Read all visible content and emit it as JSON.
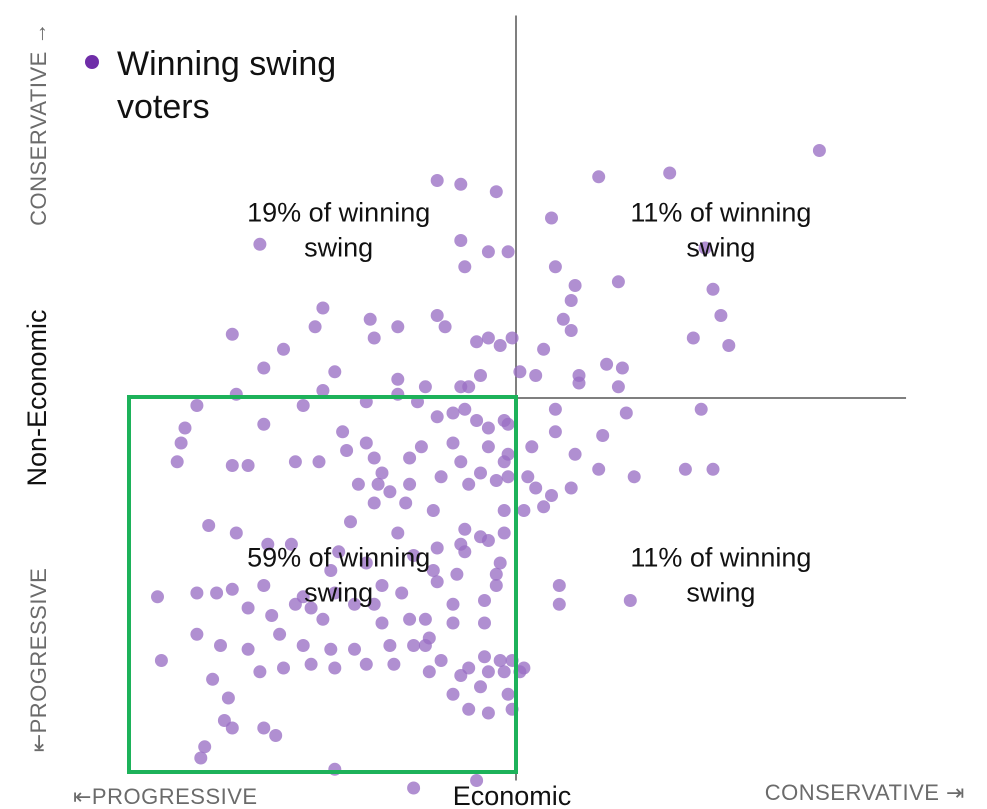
{
  "legend": {
    "label": "Winning swing voters",
    "line1": "Winning swing",
    "line2": "voters",
    "marker_color": "#6f2da8"
  },
  "colors": {
    "point": "#9a6fc4",
    "axis": "#555555",
    "highlight_box": "#1db25a",
    "caption": "#6b6b6b"
  },
  "axes": {
    "x_title": "Economic",
    "y_title": "Non-Economic",
    "x_left_caption": "⇤PROGRESSIVE",
    "x_right_caption": "CONSERVATIVE ⇥",
    "y_bottom_caption": "⇤PROGRESSIVE",
    "y_top_caption": "CONSERVATIVE →"
  },
  "chart_data": {
    "type": "scatter",
    "title": "",
    "xlabel": "Economic",
    "ylabel": "Non-Economic",
    "xlim": [
      -1,
      1
    ],
    "ylim": [
      -1,
      1
    ],
    "grid": false,
    "legend": {
      "position": "top-left",
      "entries": [
        "Winning swing voters"
      ]
    },
    "annotations": [
      {
        "line1": "19% of winning",
        "line2": "swing",
        "quadrant": "top-left",
        "x": -0.45,
        "y": 0.45
      },
      {
        "line1": "11% of winning",
        "line2": "swing",
        "quadrant": "top-right",
        "x": 0.52,
        "y": 0.45
      },
      {
        "line1": "59% of winning",
        "line2": "swing",
        "quadrant": "bottom-left",
        "x": -0.45,
        "y": -0.47
      },
      {
        "line1": "11% of winning",
        "line2": "swing",
        "quadrant": "bottom-right",
        "x": 0.52,
        "y": -0.47
      }
    ],
    "highlight_region": {
      "x": [
        -1,
        0
      ],
      "y": [
        -1,
        0
      ]
    },
    "series": [
      {
        "name": "Winning swing voters",
        "points": [
          [
            0.77,
            0.66
          ],
          [
            0.39,
            0.6
          ],
          [
            0.21,
            0.59
          ],
          [
            -0.14,
            0.57
          ],
          [
            -0.2,
            0.58
          ],
          [
            -0.05,
            0.55
          ],
          [
            0.09,
            0.48
          ],
          [
            -0.14,
            0.42
          ],
          [
            -0.02,
            0.39
          ],
          [
            -0.07,
            0.39
          ],
          [
            -0.65,
            0.41
          ],
          [
            -0.13,
            0.35
          ],
          [
            0.1,
            0.35
          ],
          [
            0.26,
            0.31
          ],
          [
            0.5,
            0.29
          ],
          [
            0.48,
            0.4
          ],
          [
            0.15,
            0.3
          ],
          [
            0.14,
            0.26
          ],
          [
            -0.49,
            0.24
          ],
          [
            -0.51,
            0.19
          ],
          [
            -0.2,
            0.22
          ],
          [
            -0.37,
            0.21
          ],
          [
            -0.72,
            0.17
          ],
          [
            -0.3,
            0.19
          ],
          [
            -0.18,
            0.19
          ],
          [
            -0.36,
            0.16
          ],
          [
            0.12,
            0.21
          ],
          [
            0.14,
            0.18
          ],
          [
            0.52,
            0.22
          ],
          [
            0.45,
            0.16
          ],
          [
            0.54,
            0.14
          ],
          [
            -0.07,
            0.16
          ],
          [
            -0.1,
            0.15
          ],
          [
            -0.04,
            0.14
          ],
          [
            -0.01,
            0.16
          ],
          [
            -0.59,
            0.13
          ],
          [
            -0.64,
            0.08
          ],
          [
            -0.46,
            0.07
          ],
          [
            -0.3,
            0.05
          ],
          [
            0.07,
            0.13
          ],
          [
            0.23,
            0.09
          ],
          [
            0.16,
            0.06
          ],
          [
            0.27,
            0.08
          ],
          [
            0.01,
            0.07
          ],
          [
            -0.71,
            0.01
          ],
          [
            -0.49,
            0.02
          ],
          [
            -0.38,
            -0.01
          ],
          [
            -0.3,
            0.01
          ],
          [
            -0.25,
            -0.01
          ],
          [
            -0.23,
            0.03
          ],
          [
            -0.14,
            0.03
          ],
          [
            -0.12,
            0.03
          ],
          [
            0.05,
            0.06
          ],
          [
            0.16,
            0.04
          ],
          [
            0.26,
            0.03
          ],
          [
            -0.09,
            0.06
          ],
          [
            -0.81,
            -0.02
          ],
          [
            -0.84,
            -0.08
          ],
          [
            -0.85,
            -0.12
          ],
          [
            -0.54,
            -0.02
          ],
          [
            -0.64,
            -0.07
          ],
          [
            -0.44,
            -0.09
          ],
          [
            -0.43,
            -0.14
          ],
          [
            -0.38,
            -0.12
          ],
          [
            -0.36,
            -0.16
          ],
          [
            -0.2,
            -0.05
          ],
          [
            -0.16,
            -0.04
          ],
          [
            -0.13,
            -0.03
          ],
          [
            -0.1,
            -0.06
          ],
          [
            -0.07,
            -0.08
          ],
          [
            -0.03,
            -0.06
          ],
          [
            -0.02,
            -0.07
          ],
          [
            0.1,
            -0.03
          ],
          [
            0.28,
            -0.04
          ],
          [
            0.47,
            -0.03
          ],
          [
            0.1,
            -0.09
          ],
          [
            0.22,
            -0.1
          ],
          [
            -0.86,
            -0.17
          ],
          [
            -0.72,
            -0.18
          ],
          [
            -0.68,
            -0.18
          ],
          [
            -0.56,
            -0.17
          ],
          [
            -0.5,
            -0.17
          ],
          [
            -0.34,
            -0.2
          ],
          [
            -0.27,
            -0.16
          ],
          [
            -0.14,
            -0.17
          ],
          [
            -0.03,
            -0.17
          ],
          [
            -0.07,
            -0.13
          ],
          [
            -0.02,
            -0.15
          ],
          [
            -0.16,
            -0.12
          ],
          [
            -0.24,
            -0.13
          ],
          [
            0.04,
            -0.13
          ],
          [
            0.15,
            -0.15
          ],
          [
            0.21,
            -0.19
          ],
          [
            0.3,
            -0.21
          ],
          [
            0.43,
            -0.19
          ],
          [
            0.5,
            -0.19
          ],
          [
            -0.4,
            -0.23
          ],
          [
            -0.35,
            -0.23
          ],
          [
            -0.27,
            -0.23
          ],
          [
            -0.19,
            -0.21
          ],
          [
            -0.12,
            -0.23
          ],
          [
            -0.09,
            -0.2
          ],
          [
            -0.05,
            -0.22
          ],
          [
            -0.02,
            -0.21
          ],
          [
            0.03,
            -0.21
          ],
          [
            0.05,
            -0.24
          ],
          [
            0.09,
            -0.26
          ],
          [
            0.14,
            -0.24
          ],
          [
            0.07,
            -0.29
          ],
          [
            -0.36,
            -0.28
          ],
          [
            -0.28,
            -0.28
          ],
          [
            -0.42,
            -0.33
          ],
          [
            -0.3,
            -0.36
          ],
          [
            -0.21,
            -0.3
          ],
          [
            -0.03,
            -0.3
          ],
          [
            0.02,
            -0.3
          ],
          [
            -0.13,
            -0.35
          ],
          [
            -0.03,
            -0.36
          ],
          [
            -0.32,
            -0.25
          ],
          [
            -0.78,
            -0.34
          ],
          [
            -0.71,
            -0.36
          ],
          [
            -0.63,
            -0.39
          ],
          [
            -0.57,
            -0.39
          ],
          [
            -0.45,
            -0.41
          ],
          [
            -0.47,
            -0.46
          ],
          [
            -0.38,
            -0.44
          ],
          [
            -0.26,
            -0.42
          ],
          [
            -0.2,
            -0.4
          ],
          [
            -0.14,
            -0.39
          ],
          [
            -0.09,
            -0.37
          ],
          [
            -0.07,
            -0.38
          ],
          [
            -0.13,
            -0.41
          ],
          [
            -0.21,
            -0.46
          ],
          [
            -0.04,
            -0.44
          ],
          [
            -0.05,
            -0.47
          ],
          [
            -0.15,
            -0.47
          ],
          [
            -0.64,
            -0.5
          ],
          [
            -0.54,
            -0.53
          ],
          [
            -0.46,
            -0.52
          ],
          [
            -0.34,
            -0.5
          ],
          [
            -0.29,
            -0.52
          ],
          [
            -0.16,
            -0.55
          ],
          [
            -0.08,
            -0.54
          ],
          [
            -0.2,
            -0.49
          ],
          [
            -0.05,
            -0.5
          ],
          [
            0.11,
            -0.5
          ],
          [
            -0.91,
            -0.53
          ],
          [
            -0.81,
            -0.52
          ],
          [
            -0.76,
            -0.52
          ],
          [
            -0.72,
            -0.51
          ],
          [
            -0.68,
            -0.56
          ],
          [
            -0.62,
            -0.58
          ],
          [
            -0.56,
            -0.55
          ],
          [
            -0.52,
            -0.56
          ],
          [
            -0.49,
            -0.59
          ],
          [
            -0.41,
            -0.55
          ],
          [
            -0.36,
            -0.55
          ],
          [
            -0.34,
            -0.6
          ],
          [
            -0.27,
            -0.59
          ],
          [
            -0.23,
            -0.59
          ],
          [
            -0.22,
            -0.64
          ],
          [
            -0.16,
            -0.6
          ],
          [
            -0.08,
            -0.6
          ],
          [
            0.11,
            -0.55
          ],
          [
            0.29,
            -0.54
          ],
          [
            -0.81,
            -0.63
          ],
          [
            -0.75,
            -0.66
          ],
          [
            -0.68,
            -0.67
          ],
          [
            -0.6,
            -0.63
          ],
          [
            -0.54,
            -0.66
          ],
          [
            -0.47,
            -0.67
          ],
          [
            -0.41,
            -0.67
          ],
          [
            -0.32,
            -0.66
          ],
          [
            -0.26,
            -0.66
          ],
          [
            -0.23,
            -0.66
          ],
          [
            -0.19,
            -0.7
          ],
          [
            -0.12,
            -0.72
          ],
          [
            -0.08,
            -0.69
          ],
          [
            -0.07,
            -0.73
          ],
          [
            -0.04,
            -0.7
          ],
          [
            -0.03,
            -0.73
          ],
          [
            -0.01,
            -0.7
          ],
          [
            0.01,
            -0.73
          ],
          [
            0.02,
            -0.72
          ],
          [
            -0.16,
            -0.79
          ],
          [
            -0.12,
            -0.83
          ],
          [
            -0.07,
            -0.84
          ],
          [
            -0.02,
            -0.79
          ],
          [
            -0.01,
            -0.83
          ],
          [
            -0.9,
            -0.7
          ],
          [
            -0.77,
            -0.75
          ],
          [
            -0.73,
            -0.8
          ],
          [
            -0.65,
            -0.73
          ],
          [
            -0.59,
            -0.72
          ],
          [
            -0.52,
            -0.71
          ],
          [
            -0.46,
            -0.72
          ],
          [
            -0.38,
            -0.71
          ],
          [
            -0.31,
            -0.71
          ],
          [
            -0.22,
            -0.73
          ],
          [
            -0.14,
            -0.74
          ],
          [
            -0.09,
            -0.77
          ],
          [
            -0.74,
            -0.86
          ],
          [
            -0.72,
            -0.88
          ],
          [
            -0.64,
            -0.88
          ],
          [
            -0.61,
            -0.9
          ],
          [
            -0.79,
            -0.93
          ],
          [
            -0.8,
            -0.96
          ],
          [
            -0.46,
            -0.99
          ],
          [
            -0.26,
            -1.04
          ],
          [
            -0.1,
            -1.02
          ]
        ]
      }
    ]
  }
}
